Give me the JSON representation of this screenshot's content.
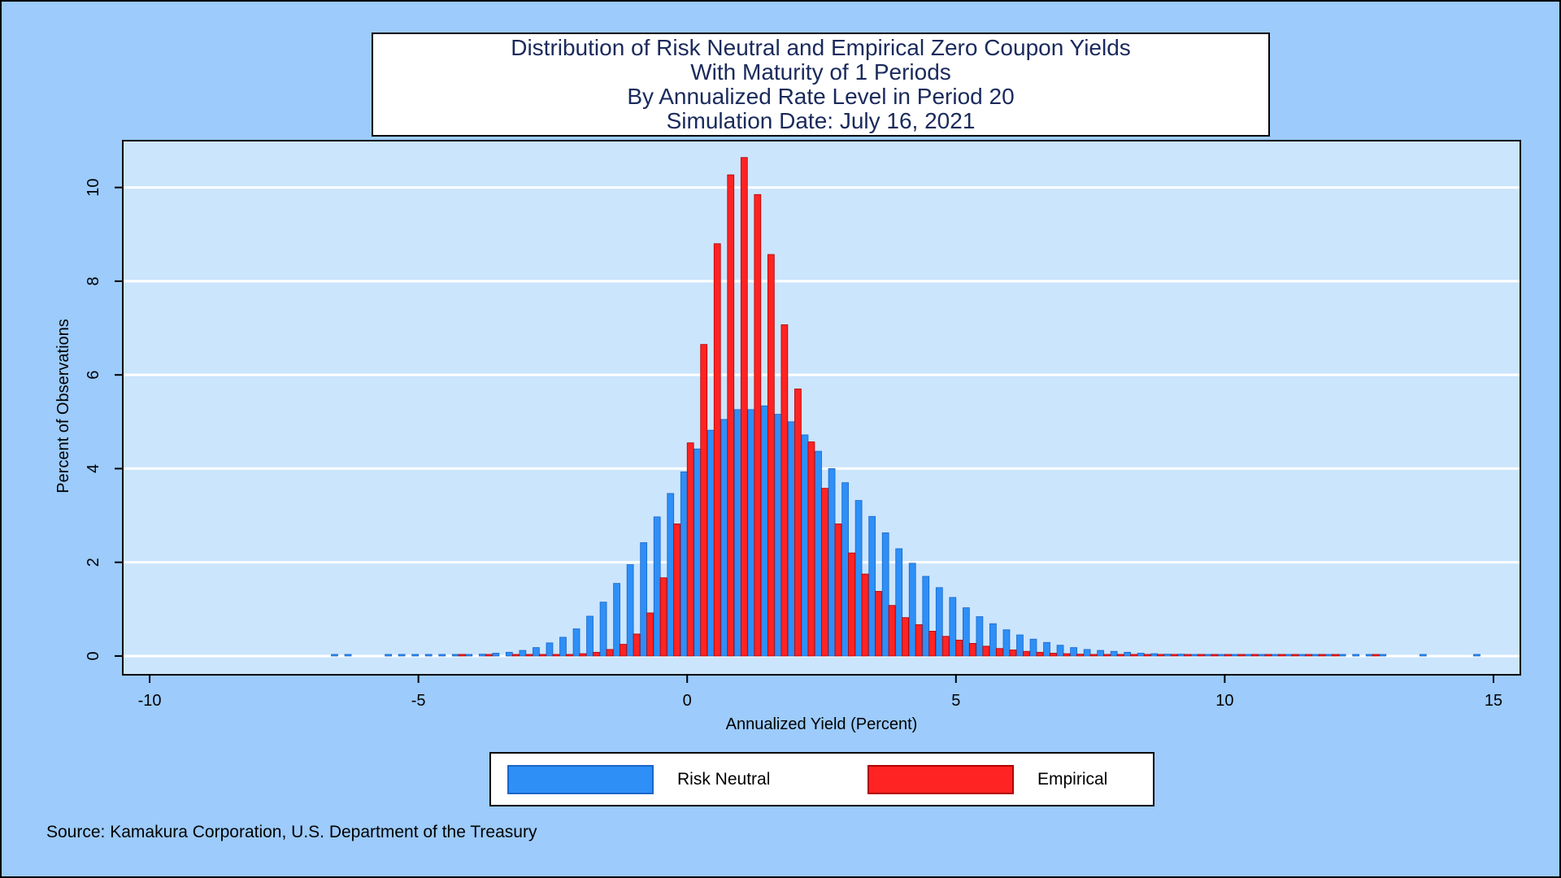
{
  "source_note": "Source: Kamakura Corporation, U.S. Department of the Treasury",
  "chart_data": {
    "type": "bar",
    "title_lines": [
      "Distribution of Risk Neutral and Empirical Zero Coupon Yields",
      "With Maturity of 1 Periods",
      "By Annualized Rate Level in Period 20",
      "Simulation Date: July 16, 2021"
    ],
    "xlabel": "Annualized Yield (Percent)",
    "ylabel": "Percent of Observations",
    "xlim": [
      -10.5,
      15.5
    ],
    "ylim": [
      -0.4,
      11
    ],
    "x_ticks": [
      -10,
      -5,
      0,
      5,
      10,
      15
    ],
    "x_tick_labels": [
      "-10",
      "-5",
      "0",
      "5",
      "10",
      "15"
    ],
    "y_ticks": [
      0,
      2,
      4,
      6,
      8,
      10
    ],
    "y_tick_labels": [
      "0",
      "2",
      "4",
      "6",
      "8",
      "10"
    ],
    "grid": "horizontal",
    "legend_position": "bottom",
    "colors": {
      "risk_neutral": "#2e8ff7",
      "empirical": "#ff2323",
      "plot_background": "#cbe5fd",
      "page_background": "#9ccbfc"
    },
    "series": [
      {
        "name": "Risk Neutral",
        "x": [
          -6.5,
          -6.25,
          -5.5,
          -5.25,
          -5.0,
          -4.75,
          -4.5,
          -4.25,
          -4.0,
          -3.75,
          -3.5,
          -3.25,
          -3.0,
          -2.75,
          -2.5,
          -2.25,
          -2.0,
          -1.75,
          -1.5,
          -1.25,
          -1.0,
          -0.75,
          -0.5,
          -0.25,
          0.0,
          0.25,
          0.5,
          0.75,
          1.0,
          1.25,
          1.5,
          1.75,
          2.0,
          2.25,
          2.5,
          2.75,
          3.0,
          3.25,
          3.5,
          3.75,
          4.0,
          4.25,
          4.5,
          4.75,
          5.0,
          5.25,
          5.5,
          5.75,
          6.0,
          6.25,
          6.5,
          6.75,
          7.0,
          7.25,
          7.5,
          7.75,
          8.0,
          8.25,
          8.5,
          8.75,
          9.0,
          9.25,
          9.5,
          9.75,
          10.0,
          10.25,
          10.5,
          10.75,
          11.0,
          11.25,
          11.5,
          11.75,
          12.0,
          12.25,
          12.5,
          12.75,
          13.0,
          13.75,
          14.75
        ],
        "values": [
          0.01,
          0.01,
          0.01,
          0.01,
          0.01,
          0.01,
          0.02,
          0.03,
          0.03,
          0.04,
          0.06,
          0.08,
          0.12,
          0.18,
          0.28,
          0.4,
          0.58,
          0.85,
          1.15,
          1.55,
          1.95,
          2.42,
          2.97,
          3.47,
          3.93,
          4.42,
          4.82,
          5.05,
          5.26,
          5.26,
          5.34,
          5.16,
          5.0,
          4.72,
          4.37,
          4.0,
          3.7,
          3.32,
          2.98,
          2.63,
          2.29,
          1.98,
          1.7,
          1.46,
          1.25,
          1.03,
          0.84,
          0.69,
          0.56,
          0.45,
          0.36,
          0.29,
          0.23,
          0.18,
          0.14,
          0.12,
          0.1,
          0.08,
          0.06,
          0.05,
          0.04,
          0.04,
          0.03,
          0.03,
          0.03,
          0.02,
          0.02,
          0.02,
          0.02,
          0.02,
          0.02,
          0.01,
          0.01,
          0.01,
          0.01,
          0.01,
          0.01,
          0.01,
          0.01
        ]
      },
      {
        "name": "Empirical",
        "x": [
          -4.25,
          -3.75,
          -3.25,
          -3.0,
          -2.75,
          -2.5,
          -2.25,
          -2.0,
          -1.75,
          -1.5,
          -1.25,
          -1.0,
          -0.75,
          -0.5,
          -0.25,
          0.0,
          0.25,
          0.5,
          0.75,
          1.0,
          1.25,
          1.5,
          1.75,
          2.0,
          2.25,
          2.5,
          2.75,
          3.0,
          3.25,
          3.5,
          3.75,
          4.0,
          4.25,
          4.5,
          4.75,
          5.0,
          5.25,
          5.5,
          5.75,
          6.0,
          6.25,
          6.5,
          6.75,
          7.0,
          7.25,
          7.5,
          7.75,
          8.0,
          8.25,
          8.5,
          8.75,
          9.0,
          9.25,
          9.5,
          9.75,
          10.0,
          10.25,
          10.5,
          10.75,
          11.0,
          11.25,
          11.5,
          11.75,
          12.0,
          12.75
        ],
        "values": [
          0.01,
          0.01,
          0.01,
          0.01,
          0.01,
          0.02,
          0.03,
          0.05,
          0.08,
          0.14,
          0.25,
          0.47,
          0.92,
          1.67,
          2.82,
          4.55,
          6.65,
          8.8,
          10.27,
          10.64,
          9.85,
          8.57,
          7.07,
          5.7,
          4.57,
          3.58,
          2.82,
          2.2,
          1.75,
          1.38,
          1.08,
          0.82,
          0.67,
          0.53,
          0.42,
          0.34,
          0.27,
          0.21,
          0.16,
          0.13,
          0.1,
          0.08,
          0.06,
          0.05,
          0.04,
          0.03,
          0.03,
          0.02,
          0.02,
          0.02,
          0.01,
          0.01,
          0.01,
          0.01,
          0.01,
          0.01,
          0.01,
          0.01,
          0.01,
          0.01,
          0.01,
          0.01,
          0.01,
          0.01,
          0.01
        ]
      }
    ]
  }
}
